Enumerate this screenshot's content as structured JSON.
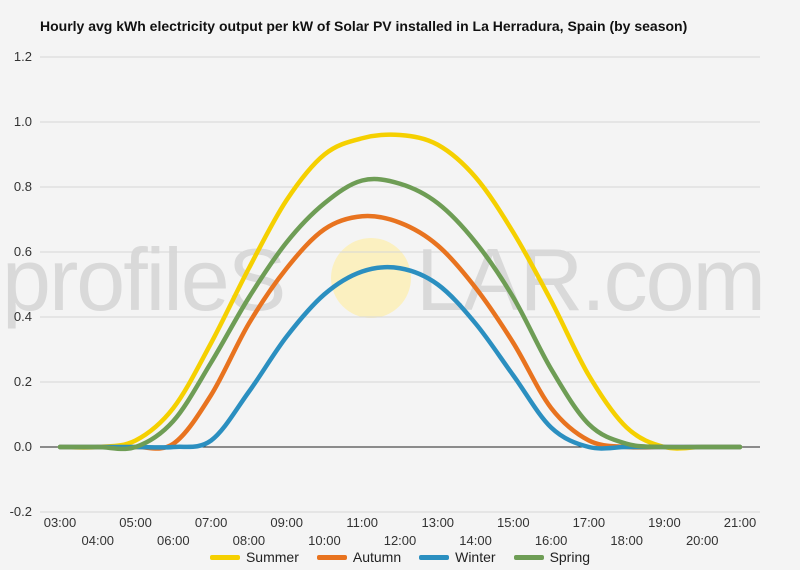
{
  "chart_data": {
    "type": "line",
    "title": "Hourly avg kWh electricity output per kW of Solar PV installed in La Herradura, Spain (by season)",
    "ylim": [
      -0.2,
      1.2
    ],
    "yticks": [
      "-0.2",
      "0.0",
      "0.2",
      "0.4",
      "0.6",
      "0.8",
      "1.0",
      "1.2"
    ],
    "yticks_values": [
      -0.2,
      0.0,
      0.2,
      0.4,
      0.6,
      0.8,
      1.0,
      1.2
    ],
    "x": [
      "03:00",
      "04:00",
      "05:00",
      "06:00",
      "07:00",
      "08:00",
      "09:00",
      "10:00",
      "11:00",
      "12:00",
      "13:00",
      "14:00",
      "15:00",
      "16:00",
      "17:00",
      "18:00",
      "19:00",
      "20:00",
      "21:00"
    ],
    "grid": true,
    "legend_position": "bottom",
    "series": [
      {
        "name": "Summer",
        "color": "#f5d000",
        "values": [
          0.0,
          0.0,
          0.02,
          0.12,
          0.32,
          0.55,
          0.76,
          0.9,
          0.95,
          0.96,
          0.93,
          0.83,
          0.66,
          0.45,
          0.22,
          0.06,
          0.0,
          0.0,
          0.0
        ]
      },
      {
        "name": "Autumn",
        "color": "#e8731f",
        "values": [
          0.0,
          0.0,
          0.0,
          0.01,
          0.16,
          0.38,
          0.55,
          0.67,
          0.71,
          0.69,
          0.62,
          0.49,
          0.32,
          0.12,
          0.02,
          0.0,
          0.0,
          0.0,
          0.0
        ]
      },
      {
        "name": "Winter",
        "color": "#2b8fc0",
        "values": [
          0.0,
          0.0,
          0.0,
          0.0,
          0.02,
          0.17,
          0.34,
          0.47,
          0.54,
          0.55,
          0.5,
          0.38,
          0.22,
          0.06,
          0.0,
          0.0,
          0.0,
          0.0,
          0.0
        ]
      },
      {
        "name": "Spring",
        "color": "#6e9d55",
        "values": [
          0.0,
          0.0,
          0.0,
          0.08,
          0.26,
          0.46,
          0.63,
          0.75,
          0.82,
          0.81,
          0.75,
          0.63,
          0.46,
          0.24,
          0.07,
          0.01,
          0.0,
          0.0,
          0.0
        ]
      }
    ]
  },
  "watermark": {
    "text_left": "profileS",
    "text_right": "LAR.com"
  }
}
